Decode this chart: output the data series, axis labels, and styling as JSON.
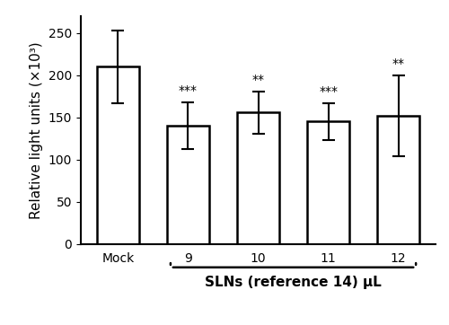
{
  "categories": [
    "Mock",
    "9",
    "10",
    "11",
    "12"
  ],
  "values": [
    210,
    140,
    156,
    145,
    152
  ],
  "errors": [
    43,
    28,
    25,
    22,
    48
  ],
  "significance": [
    "",
    "***",
    "**",
    "***",
    "**"
  ],
  "bar_color": "#ffffff",
  "bar_edgecolor": "#000000",
  "bar_linewidth": 1.8,
  "errorbar_color": "#000000",
  "errorbar_linewidth": 1.5,
  "errorbar_capsize": 5,
  "ylabel": "Relative light units (×10³)",
  "ylim": [
    0,
    270
  ],
  "yticks": [
    0,
    50,
    100,
    150,
    200,
    250
  ],
  "xlabel_bracket": "SLNs (reference 14) μL",
  "sig_fontsize": 10,
  "ylabel_fontsize": 11,
  "tick_fontsize": 10,
  "xlabel_fontsize": 11
}
